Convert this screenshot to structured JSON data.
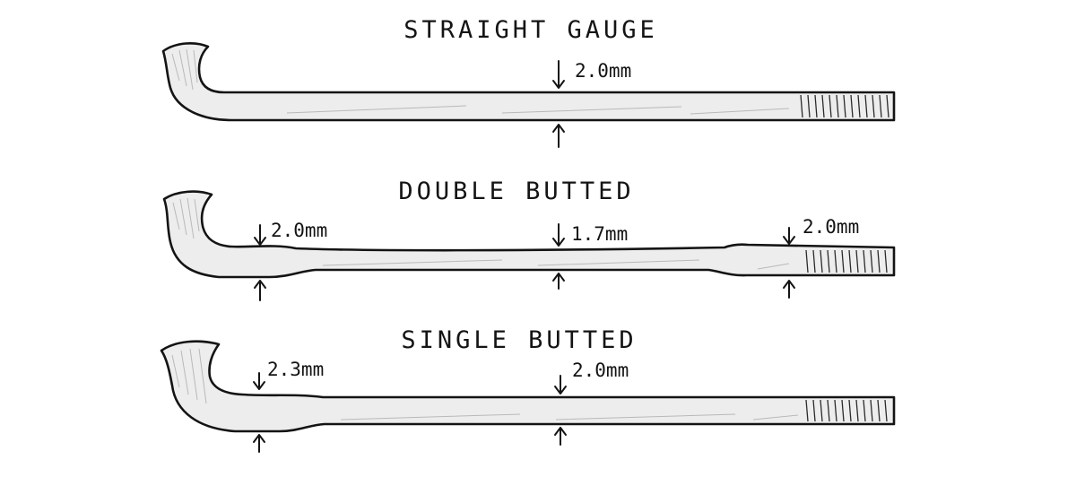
{
  "spokes": [
    {
      "title": "STRAIGHT GAUGE",
      "measurements": [
        "2.0mm"
      ]
    },
    {
      "title": "DOUBLE BUTTED",
      "measurements": [
        "2.0mm",
        "1.7mm",
        "2.0mm"
      ]
    },
    {
      "title": "SINGLE BUTTED",
      "measurements": [
        "2.3mm",
        "2.0mm"
      ]
    }
  ]
}
